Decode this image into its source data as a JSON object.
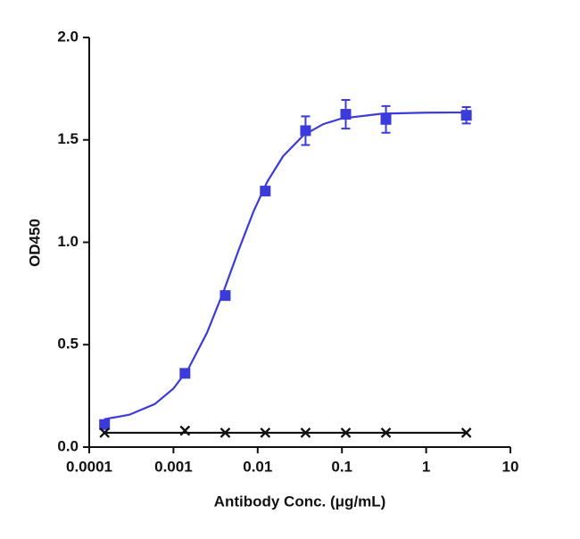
{
  "chart_data": {
    "type": "scatter",
    "x_label": "Antibody Conc. (μg/mL)",
    "y_label": "OD450",
    "log_x": true,
    "xlim": [
      0.0001,
      10
    ],
    "xticks": [
      0.0001,
      0.001,
      0.01,
      0.1,
      1,
      10
    ],
    "ylim": [
      0,
      2
    ],
    "yticks": [
      {
        "value": 0,
        "label": "0.0"
      },
      0.5,
      {
        "value": 1,
        "label": "1.0"
      },
      1.5,
      {
        "value": 2,
        "label": "2.0"
      }
    ],
    "grid": false,
    "series": [
      {
        "color": "#3b3bdb",
        "marker": "square",
        "x": [
          0.000152,
          0.00137,
          0.00412,
          0.0123,
          0.037,
          0.111,
          0.333,
          3
        ],
        "values": [
          0.11,
          0.36,
          0.74,
          1.25,
          1.545,
          1.625,
          1.6,
          1.62
        ],
        "errors": [
          0.01,
          0.01,
          0.01,
          0.01,
          0.07,
          0.07,
          0.065,
          0.04
        ]
      },
      {
        "color": "#111111",
        "marker": "x",
        "x": [
          0.000152,
          0.00137,
          0.00412,
          0.0123,
          0.037,
          0.111,
          0.333,
          3
        ],
        "values": [
          0.07,
          0.08,
          0.07,
          0.07,
          0.07,
          0.07,
          0.07,
          0.07
        ]
      }
    ],
    "fits": [
      {
        "color": "#3b3bdb",
        "x": [
          0.00015,
          0.0003,
          0.0006,
          0.001,
          0.0015,
          0.0025,
          0.004,
          0.006,
          0.009,
          0.013,
          0.02,
          0.035,
          0.06,
          0.1,
          0.3,
          1,
          3
        ],
        "values": [
          0.136,
          0.158,
          0.21,
          0.286,
          0.382,
          0.558,
          0.768,
          0.967,
          1.154,
          1.296,
          1.42,
          1.523,
          1.577,
          1.605,
          1.628,
          1.633,
          1.634
        ]
      },
      {
        "color": "#111111",
        "x": [
          0.00015,
          3
        ],
        "values": [
          0.07,
          0.07
        ]
      }
    ]
  }
}
